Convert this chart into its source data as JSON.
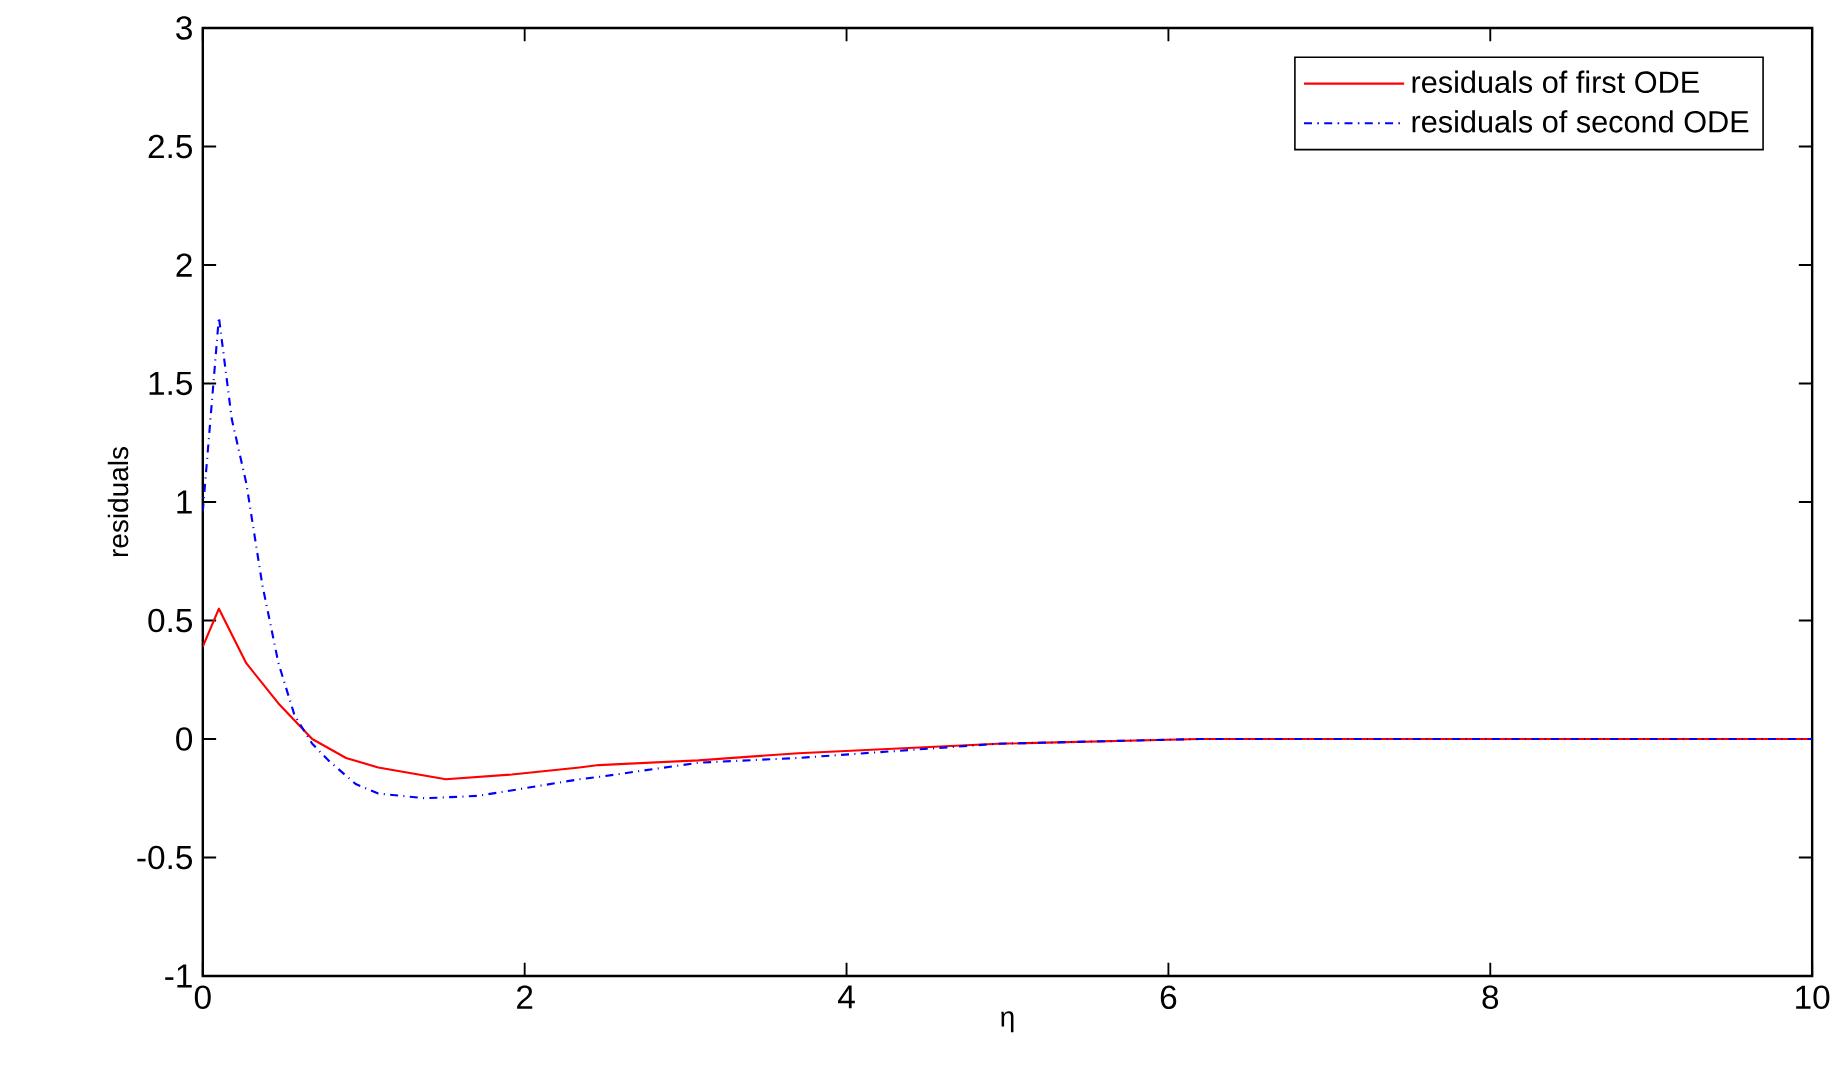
{
  "chart_data": {
    "type": "line",
    "xlabel": "η",
    "ylabel": "residuals",
    "xlim": [
      0,
      10
    ],
    "ylim": [
      -1,
      3
    ],
    "xticks": [
      0,
      2,
      4,
      6,
      8,
      10
    ],
    "yticks": [
      -1,
      -0.5,
      0,
      0.5,
      1,
      1.5,
      2,
      2.5,
      3
    ],
    "grid": false,
    "legend": "top right",
    "marker": "none",
    "series": [
      {
        "name": "residuals of first ODE",
        "color": "#ff0000",
        "line_style": "solid",
        "x": [
          0,
          0.1,
          0.27,
          0.47,
          0.68,
          0.89,
          1.09,
          1.51,
          1.92,
          2.34,
          2.46,
          3.08,
          3.7,
          4.94,
          6.19,
          7.5,
          10
        ],
        "values": [
          0.39,
          0.55,
          0.32,
          0.15,
          0.0,
          -0.08,
          -0.12,
          -0.17,
          -0.15,
          -0.12,
          -0.11,
          -0.09,
          -0.06,
          -0.02,
          0,
          0,
          0
        ]
      },
      {
        "name": "residuals of second ODE",
        "color": "#0000ff",
        "line_style": "dashdot",
        "x": [
          0,
          0.1,
          0.18,
          0.27,
          0.37,
          0.47,
          0.57,
          0.68,
          0.78,
          0.95,
          1.09,
          1.38,
          1.71,
          2.34,
          2.46,
          3.08,
          3.7,
          4.94,
          6.19,
          7.5,
          10
        ],
        "values": [
          0.96,
          1.78,
          1.35,
          1.08,
          0.65,
          0.32,
          0.1,
          -0.02,
          -0.09,
          -0.19,
          -0.23,
          -0.25,
          -0.24,
          -0.17,
          -0.16,
          -0.1,
          -0.08,
          -0.02,
          0,
          0,
          0
        ]
      }
    ]
  }
}
